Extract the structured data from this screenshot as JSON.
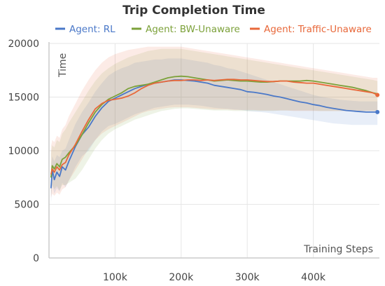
{
  "chart_data": {
    "type": "line",
    "title": "Trip Completion Time",
    "xlabel": "Training Steps",
    "ylabel": "Time",
    "xlim": [
      0,
      500000
    ],
    "ylim": [
      0,
      20000
    ],
    "x_ticks": [
      {
        "value": 100000,
        "label": "100k"
      },
      {
        "value": 200000,
        "label": "200k"
      },
      {
        "value": 300000,
        "label": "300k"
      },
      {
        "value": 400000,
        "label": "400k"
      }
    ],
    "y_ticks": [
      {
        "value": 0,
        "label": "0"
      },
      {
        "value": 5000,
        "label": "5000"
      },
      {
        "value": 10000,
        "label": "10000"
      },
      {
        "value": 15000,
        "label": "15000"
      },
      {
        "value": 20000,
        "label": "20000"
      }
    ],
    "grid": true,
    "legend_position": "top",
    "series": [
      {
        "name": "Agent: RL",
        "color": "#4a78c8",
        "x": [
          3000,
          5000,
          8000,
          12000,
          16000,
          20000,
          25000,
          30000,
          40000,
          50000,
          60000,
          70000,
          80000,
          90000,
          100000,
          110000,
          120000,
          130000,
          140000,
          150000,
          160000,
          170000,
          180000,
          190000,
          200000,
          210000,
          220000,
          230000,
          240000,
          250000,
          260000,
          270000,
          280000,
          290000,
          300000,
          310000,
          320000,
          330000,
          340000,
          350000,
          360000,
          370000,
          380000,
          390000,
          400000,
          410000,
          420000,
          430000,
          440000,
          450000,
          460000,
          470000,
          480000,
          490000,
          497000
        ],
        "values": [
          6500,
          8200,
          7300,
          8000,
          7600,
          8500,
          8200,
          9000,
          10400,
          11500,
          12200,
          13200,
          14000,
          14600,
          14900,
          15200,
          15500,
          15800,
          16000,
          16200,
          16300,
          16400,
          16500,
          16600,
          16600,
          16550,
          16500,
          16400,
          16300,
          16100,
          16000,
          15900,
          15800,
          15700,
          15500,
          15450,
          15350,
          15250,
          15100,
          15000,
          14850,
          14700,
          14550,
          14450,
          14300,
          14200,
          14050,
          13950,
          13850,
          13750,
          13700,
          13650,
          13600,
          13600,
          13600
        ],
        "band_upper": [
          8500,
          9500,
          9000,
          9600,
          9400,
          10000,
          10200,
          11000,
          12500,
          13600,
          14500,
          15500,
          16300,
          17000,
          17400,
          17700,
          17900,
          18200,
          18300,
          18400,
          18500,
          18500,
          18600,
          18600,
          18600,
          18500,
          18400,
          18300,
          18200,
          18000,
          17900,
          17700,
          17600,
          17400,
          17200,
          17000,
          16800,
          16600,
          16400,
          16200,
          16000,
          15800,
          15600,
          15400,
          15200,
          15050,
          14950,
          14850,
          14750,
          14700,
          14650,
          14600,
          14600,
          14600,
          14600
        ],
        "band_lower": [
          5000,
          6800,
          6000,
          6500,
          6200,
          7000,
          6600,
          7200,
          8500,
          9500,
          10000,
          11000,
          11800,
          12300,
          12500,
          12800,
          13100,
          13400,
          13600,
          13800,
          14000,
          14100,
          14200,
          14300,
          14300,
          14300,
          14250,
          14200,
          14100,
          14000,
          13950,
          13900,
          13850,
          13800,
          13700,
          13650,
          13600,
          13550,
          13450,
          13350,
          13250,
          13150,
          13050,
          12950,
          12850,
          12750,
          12650,
          12550,
          12500,
          12450,
          12400,
          12400,
          12400,
          12400,
          12400
        ]
      },
      {
        "name": "Agent: BW-Unaware",
        "color": "#7ca13a",
        "x": [
          3000,
          5000,
          8000,
          12000,
          16000,
          20000,
          25000,
          30000,
          40000,
          50000,
          60000,
          70000,
          80000,
          90000,
          100000,
          110000,
          120000,
          130000,
          140000,
          150000,
          160000,
          170000,
          180000,
          190000,
          200000,
          210000,
          220000,
          230000,
          240000,
          250000,
          260000,
          270000,
          280000,
          290000,
          300000,
          310000,
          320000,
          330000,
          340000,
          350000,
          360000,
          370000,
          380000,
          390000,
          400000,
          410000,
          420000,
          430000,
          440000,
          450000,
          460000,
          470000,
          480000,
          490000,
          497000
        ],
        "values": [
          7500,
          8600,
          8300,
          8800,
          8500,
          9200,
          9400,
          9800,
          10500,
          11500,
          12600,
          13600,
          14300,
          14800,
          15100,
          15400,
          15800,
          16000,
          16100,
          16200,
          16400,
          16600,
          16800,
          16900,
          16950,
          16900,
          16800,
          16700,
          16600,
          16500,
          16550,
          16600,
          16550,
          16500,
          16500,
          16450,
          16400,
          16400,
          16450,
          16500,
          16500,
          16500,
          16500,
          16550,
          16500,
          16400,
          16300,
          16200,
          16100,
          16000,
          15900,
          15750,
          15600,
          15400,
          15300
        ],
        "band_upper": [
          9800,
          10500,
          10300,
          11000,
          10800,
          11600,
          12000,
          12600,
          13600,
          14600,
          15600,
          16500,
          17200,
          17700,
          18100,
          18400,
          18700,
          18900,
          19100,
          19300,
          19400,
          19500,
          19500,
          19500,
          19500,
          19400,
          19300,
          19200,
          19100,
          19000,
          18900,
          18800,
          18700,
          18600,
          18500,
          18400,
          18300,
          18200,
          18100,
          18000,
          17900,
          17800,
          17700,
          17600,
          17500,
          17400,
          17300,
          17200,
          17100,
          17000,
          16900,
          16800,
          16700,
          16600,
          16500
        ],
        "band_lower": [
          5800,
          6800,
          6400,
          6700,
          6300,
          6800,
          6800,
          7000,
          7400,
          8200,
          9200,
          10200,
          11000,
          11600,
          12000,
          12300,
          12600,
          12900,
          13100,
          13300,
          13500,
          13700,
          13800,
          13900,
          13950,
          13950,
          13900,
          13850,
          13800,
          13750,
          13750,
          13750,
          13700,
          13700,
          13700,
          13700,
          13700,
          13700,
          13700,
          13750,
          13750,
          13750,
          13750,
          13750,
          13750,
          13700,
          13700,
          13700,
          13700,
          13700,
          13700,
          13700,
          13700,
          13700,
          13700
        ]
      },
      {
        "name": "Agent: Traffic-Unaware",
        "color": "#e8683a",
        "x": [
          3000,
          5000,
          8000,
          12000,
          16000,
          20000,
          25000,
          30000,
          40000,
          50000,
          60000,
          70000,
          80000,
          90000,
          100000,
          110000,
          120000,
          130000,
          140000,
          150000,
          160000,
          170000,
          180000,
          190000,
          200000,
          210000,
          220000,
          230000,
          240000,
          250000,
          260000,
          270000,
          280000,
          290000,
          300000,
          310000,
          320000,
          330000,
          340000,
          350000,
          360000,
          370000,
          380000,
          390000,
          400000,
          410000,
          420000,
          430000,
          440000,
          450000,
          460000,
          470000,
          480000,
          490000,
          497000
        ],
        "values": [
          7800,
          8300,
          8000,
          8500,
          8200,
          8700,
          8900,
          9600,
          10600,
          11800,
          12900,
          13900,
          14400,
          14700,
          14800,
          14900,
          15100,
          15400,
          15800,
          16100,
          16300,
          16400,
          16500,
          16550,
          16550,
          16600,
          16600,
          16550,
          16600,
          16550,
          16600,
          16650,
          16650,
          16600,
          16600,
          16550,
          16500,
          16450,
          16450,
          16500,
          16500,
          16400,
          16350,
          16300,
          16300,
          16200,
          16100,
          16000,
          15900,
          15800,
          15700,
          15600,
          15500,
          15400,
          15200
        ],
        "band_upper": [
          10400,
          11000,
          10800,
          11400,
          11200,
          12000,
          12400,
          13200,
          14400,
          15600,
          16600,
          17500,
          18200,
          18700,
          19000,
          19200,
          19400,
          19500,
          19600,
          19700,
          19700,
          19700,
          19700,
          19700,
          19700,
          19600,
          19500,
          19400,
          19300,
          19200,
          19100,
          19000,
          18900,
          18800,
          18700,
          18600,
          18500,
          18400,
          18300,
          18200,
          18100,
          18000,
          17900,
          17800,
          17700,
          17600,
          17500,
          17400,
          17300,
          17200,
          17100,
          17000,
          16900,
          16800,
          16800
        ],
        "band_lower": [
          5600,
          6000,
          5800,
          6100,
          5900,
          6400,
          6600,
          7200,
          8200,
          9200,
          10200,
          11000,
          11600,
          12000,
          12300,
          12600,
          12900,
          13200,
          13500,
          13700,
          13800,
          13900,
          14000,
          14050,
          14050,
          14050,
          14000,
          13950,
          13900,
          13850,
          13850,
          13850,
          13800,
          13800,
          13800,
          13800,
          13750,
          13750,
          13750,
          13750,
          13750,
          13700,
          13700,
          13700,
          13700,
          13700,
          13700,
          13700,
          13700,
          13700,
          13700,
          13700,
          13700,
          13700,
          13700
        ]
      }
    ]
  }
}
